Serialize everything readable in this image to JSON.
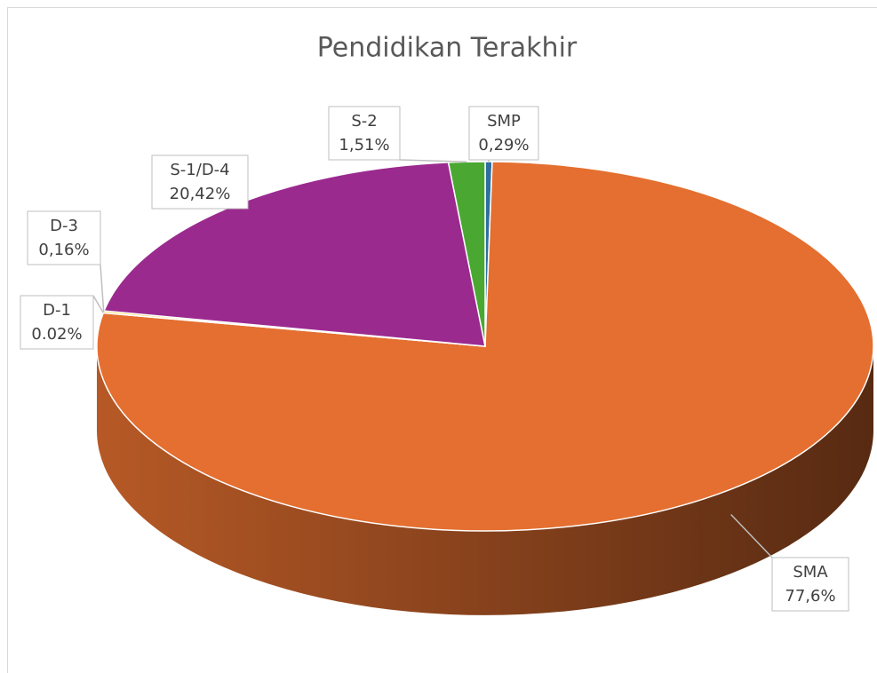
{
  "chart_data": {
    "type": "pie",
    "title": "Pendidikan Terakhir",
    "categories": [
      "SMP",
      "SMA",
      "D-1",
      "D-3",
      "S-1/D-4",
      "S-2"
    ],
    "values": [
      0.29,
      77.6,
      0.02,
      0.16,
      20.42,
      1.51
    ],
    "value_labels": [
      "0,29%",
      "77,6%",
      "0.02%",
      "0,16%",
      "20,42%",
      "1,51%"
    ],
    "colors": [
      "#2f6f9f",
      "#e46f30",
      "#a5a5a5",
      "#ffc000",
      "#9b2a8f",
      "#4aa832"
    ]
  }
}
